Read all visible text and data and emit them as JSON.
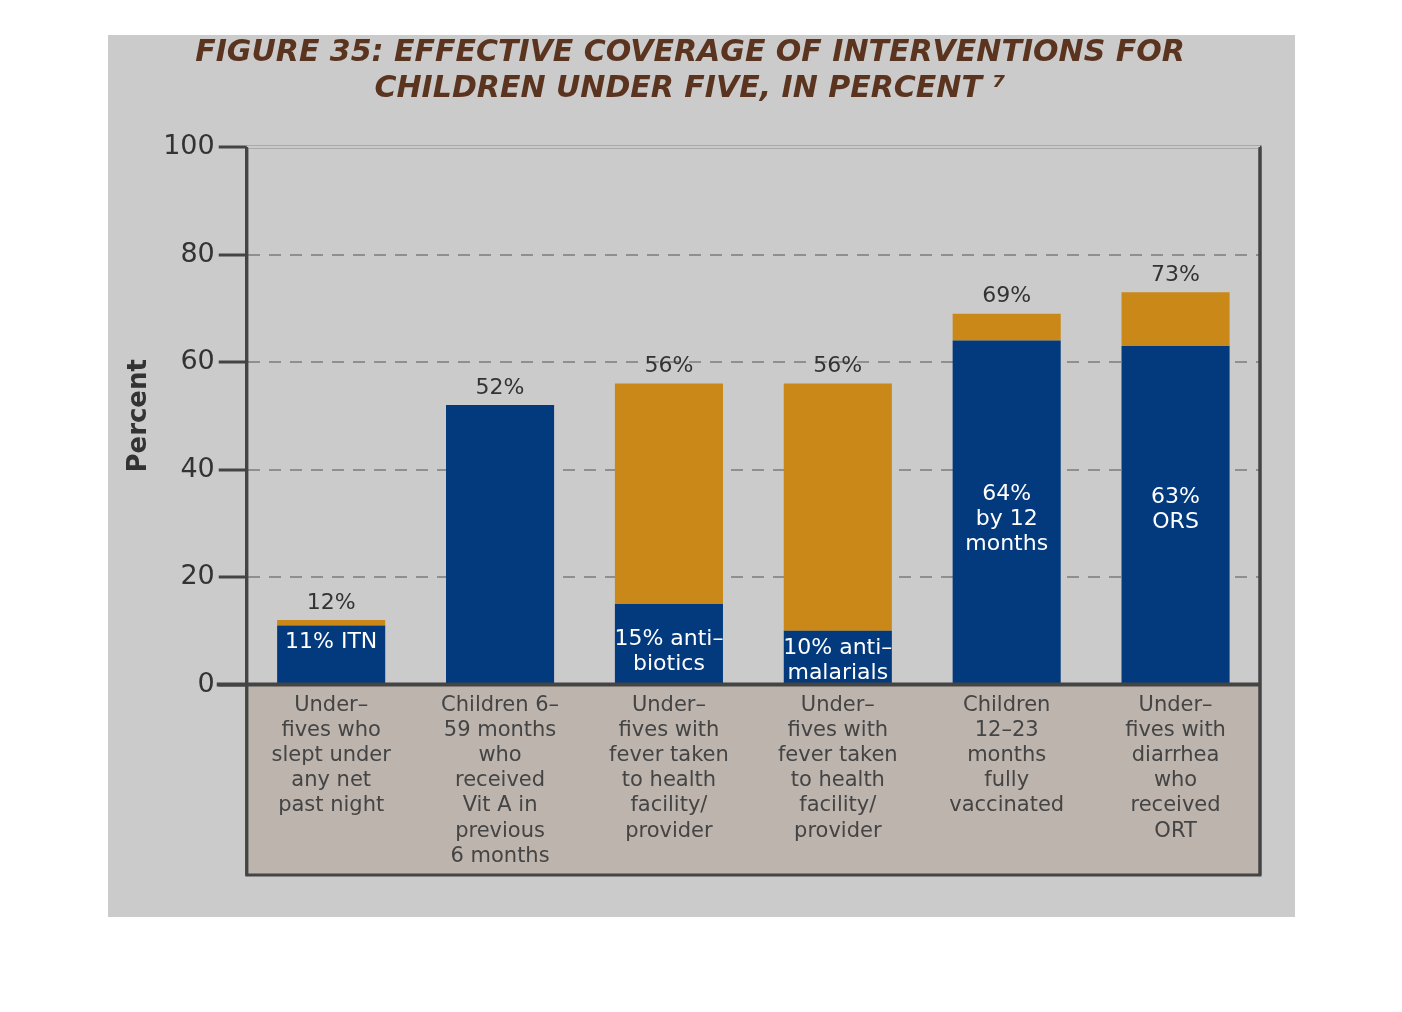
{
  "chart_data": {
    "type": "bar",
    "title": "FIGURE 35: EFFECTIVE COVERAGE OF INTERVENTIONS FOR\nCHILDREN UNDER FIVE, IN PERCENT ⁷",
    "ylabel": "Percent",
    "categories": [
      "Under–\nfives who\nslept under\nany net\npast night",
      "Children 6–\n59 months\nwho\nreceived\nVit A in\nprevious\n6 months",
      "Under–\nfives with\nfever taken\nto health\nfacility/\nprovider",
      "Under–\nfives with\nfever taken\nto health\nfacility/\nprovider",
      "Children\n12–23\nmonths\nfully\nvaccinated",
      "Under–\nfives with\ndiarrhea\nwho\nreceived\nORT"
    ],
    "stacked": true,
    "series": [
      {
        "color": "#023a7d",
        "values": [
          11,
          52,
          15,
          10,
          64,
          63
        ],
        "value_labels": [
          "11% ITN",
          null,
          "15% anti–\nbiotics",
          "10% anti–\nmalarials",
          "64%\nby 12\nmonths",
          "63%\nORS"
        ]
      },
      {
        "color": "#c98817",
        "values": [
          1,
          null,
          41,
          46,
          5,
          10
        ]
      }
    ],
    "totals": [
      "12%",
      "52%",
      "56%",
      "56%",
      "69%",
      "73%"
    ],
    "ylim": [
      0,
      100
    ],
    "yticks": [
      0,
      20,
      40,
      60,
      80,
      100
    ],
    "grid": "y",
    "legend": false
  }
}
